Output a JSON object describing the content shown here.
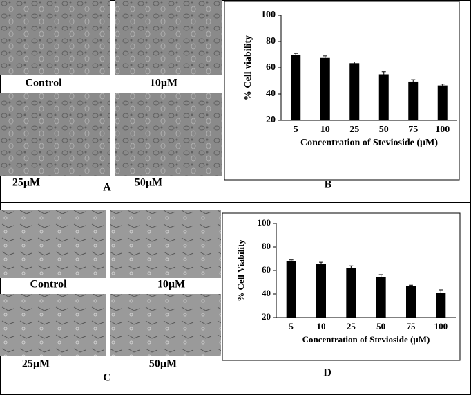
{
  "chart_data": [
    {
      "type": "bar",
      "y_label": "% Cell viability",
      "x_label": "Concentration of Stevioside (µM)",
      "categories": [
        "5",
        "10",
        "25",
        "50",
        "75",
        "100"
      ],
      "values": [
        70,
        67.5,
        63.5,
        55,
        49.5,
        46.5
      ],
      "errors": [
        1,
        1.5,
        1,
        2,
        1.5,
        1
      ],
      "color": "#000000",
      "ylim": [
        20,
        100
      ],
      "yticks": [
        20,
        40,
        60,
        80,
        100
      ]
    },
    {
      "type": "bar",
      "y_label": "% Cell Viability",
      "x_label": "Concentration of Stevioside (µM)",
      "categories": [
        "5",
        "10",
        "25",
        "50",
        "75",
        "100"
      ],
      "values": [
        68,
        65.5,
        62,
        54.5,
        47,
        41
      ],
      "errors": [
        1,
        1.5,
        2,
        2,
        0.5,
        2.5
      ],
      "color": "#000000",
      "ylim": [
        20,
        100
      ],
      "yticks": [
        20,
        40,
        60,
        80,
        100
      ]
    }
  ],
  "micrograph_labels": [
    [
      "Control",
      "10µM",
      "25µM",
      "50µM"
    ],
    [
      "Control",
      "10µM",
      "25µM",
      "50µM"
    ]
  ],
  "panel_labels": [
    "A",
    "B",
    "C",
    "D"
  ]
}
